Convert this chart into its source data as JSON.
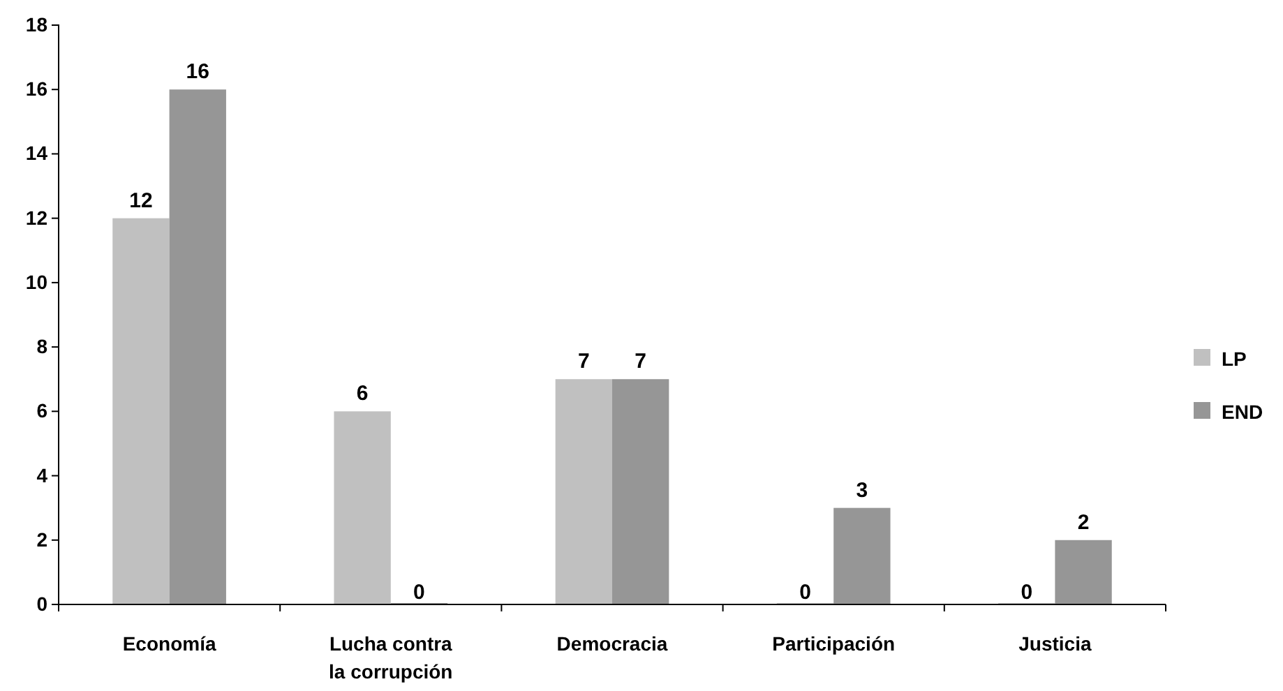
{
  "chart_data": {
    "type": "bar",
    "categories": [
      "Economía",
      "Lucha contra la corrupción",
      "Democracia",
      "Participación",
      "Justicia"
    ],
    "series": [
      {
        "name": "LP",
        "color": "#c0c0c0",
        "values": [
          12,
          6,
          7,
          0,
          0
        ]
      },
      {
        "name": "END",
        "color": "#969696",
        "values": [
          16,
          0,
          7,
          3,
          2
        ]
      }
    ],
    "ylim": [
      0,
      18
    ],
    "yticks": [
      0,
      2,
      4,
      6,
      8,
      10,
      12,
      14,
      16,
      18
    ],
    "grid": false,
    "legend": "right",
    "data_labels": true
  }
}
